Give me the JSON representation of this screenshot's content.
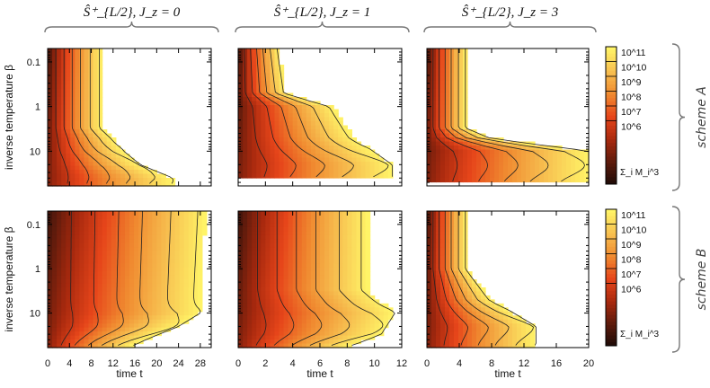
{
  "chart_data": {
    "type": "heatmap",
    "ylabel": "inverse temperature β",
    "xlabel": "time t",
    "y_scale": "log",
    "ylim": [
      0.05,
      60
    ],
    "y_ticks": [
      "0.1",
      "1",
      "10"
    ],
    "grid": false,
    "colorbar": {
      "label": "Σ_i M_i^3",
      "scale": "log",
      "tick_labels": [
        "10^11",
        "10^10",
        "10^9",
        "10^8",
        "10^7",
        "10^6"
      ],
      "colors": [
        "#1a0a06",
        "#5a1a0c",
        "#a8290e",
        "#e6451a",
        "#f08a30",
        "#f7c050",
        "#fff467"
      ]
    },
    "columns": [
      {
        "title": "Ŝ⁺_{L/2}, J_z = 0",
        "title_main": "Ŝ",
        "title_sup": "+",
        "title_sub": "L/2",
        "title_rest": ", J_z = 0",
        "xlim": [
          0,
          30
        ],
        "x_ticks": [
          "0",
          "4",
          "8",
          "12",
          "16",
          "20",
          "24",
          "28"
        ]
      },
      {
        "title": "Ŝ⁺_{L/2}, J_z = 1",
        "title_main": "Ŝ",
        "title_sup": "+",
        "title_sub": "L/2",
        "title_rest": ", J_z = 1",
        "xlim": [
          0,
          12
        ],
        "x_ticks": [
          "0",
          "2",
          "4",
          "6",
          "8",
          "10",
          "12"
        ]
      },
      {
        "title": "Ŝ⁺_{L/2}, J_z = 3",
        "title_main": "Ŝ",
        "title_sup": "+",
        "title_sub": "L/2",
        "title_rest": ", J_z = 3",
        "xlim": [
          0,
          20
        ],
        "x_ticks": [
          "0",
          "4",
          "8",
          "12",
          "16",
          "20"
        ]
      }
    ],
    "rows": [
      {
        "label": "scheme A",
        "reach_boundary": [
          [
            [
              0.05,
              10
            ],
            [
              3,
              10
            ],
            [
              5,
              12
            ],
            [
              10,
              14
            ],
            [
              20,
              17
            ],
            [
              40,
              23
            ],
            [
              60,
              23
            ]
          ],
          [
            [
              0.05,
              3
            ],
            [
              0.5,
              3.5
            ],
            [
              1,
              7
            ],
            [
              5,
              8.5
            ],
            [
              20,
              11.3
            ],
            [
              40,
              11.3
            ]
          ],
          [
            [
              0.05,
              5
            ],
            [
              3,
              5
            ],
            [
              5,
              8
            ],
            [
              10,
              20
            ],
            [
              50,
              20
            ]
          ]
        ]
      },
      {
        "label": "scheme B",
        "reach_boundary": [
          [
            [
              0.05,
              29
            ],
            [
              10,
              28
            ],
            [
              20,
              24
            ],
            [
              40,
              18
            ],
            [
              60,
              15
            ]
          ],
          [
            [
              0.05,
              9.5
            ],
            [
              3,
              9.5
            ],
            [
              10,
              11.5
            ],
            [
              30,
              10.5
            ],
            [
              60,
              8
            ]
          ],
          [
            [
              0.05,
              5
            ],
            [
              1,
              5
            ],
            [
              5,
              8
            ],
            [
              20,
              13.5
            ],
            [
              60,
              13.5
            ]
          ]
        ]
      }
    ]
  }
}
